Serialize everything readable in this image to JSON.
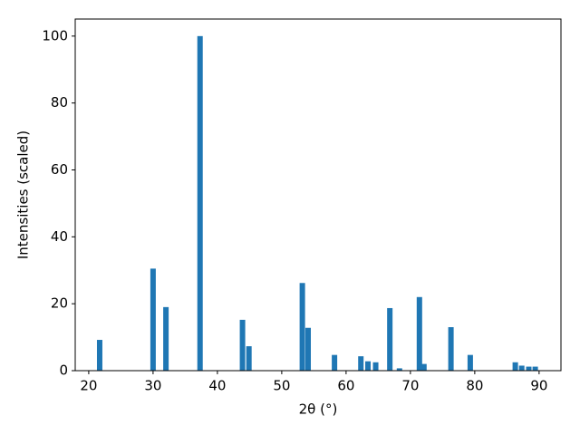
{
  "chart_data": {
    "type": "bar",
    "x_label": "2θ (°)",
    "y_label": "Intensities (scaled)",
    "x": [
      21.7,
      30.0,
      32.0,
      37.3,
      43.9,
      44.9,
      53.2,
      54.1,
      58.2,
      62.3,
      63.4,
      64.6,
      66.8,
      68.3,
      71.4,
      72.1,
      76.3,
      79.3,
      86.3,
      87.3,
      88.4,
      89.4
    ],
    "values": [
      9.2,
      30.5,
      19,
      100,
      15.2,
      7.3,
      26.2,
      12.8,
      4.7,
      4.3,
      2.8,
      2.5,
      18.7,
      0.7,
      22,
      2,
      13,
      4.7,
      2.5,
      1.5,
      1.2,
      1.2
    ],
    "color": "#1f77b4",
    "xlim": [
      17.9,
      93.4
    ],
    "ylim": [
      0,
      105.1
    ],
    "xticks": [
      20,
      30,
      40,
      50,
      60,
      70,
      80,
      90
    ],
    "yticks": [
      0,
      20,
      40,
      60,
      80,
      100
    ],
    "grid": false
  }
}
